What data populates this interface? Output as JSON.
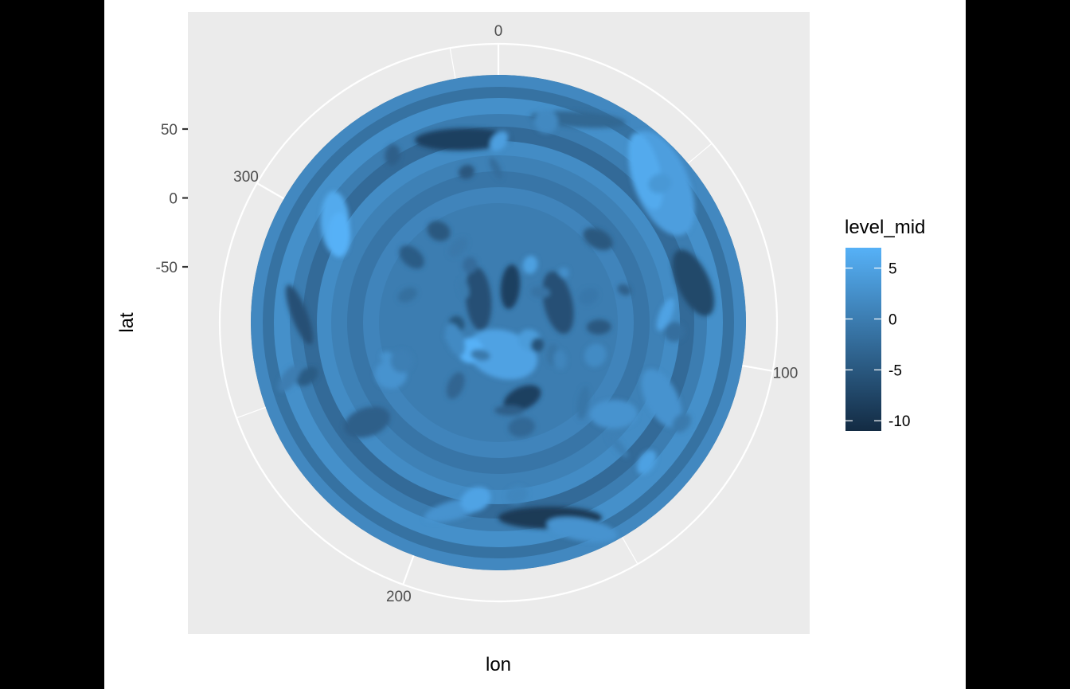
{
  "chart_data": {
    "type": "heatmap",
    "projection": "polar",
    "xlabel": "lon",
    "ylabel": "lat",
    "lon_ticks": [
      0,
      100,
      200,
      300
    ],
    "lat_ticks": [
      50,
      0,
      -50
    ],
    "fill_variable": "level_mid",
    "legend": {
      "title": "level_mid",
      "placement": "right",
      "ticks": [
        5,
        0,
        -5,
        -10
      ],
      "range": [
        -11,
        7
      ],
      "color_low": "#132b43",
      "color_high": "#56b1f7"
    },
    "panel_background": "#ebebeb",
    "grid": true
  }
}
